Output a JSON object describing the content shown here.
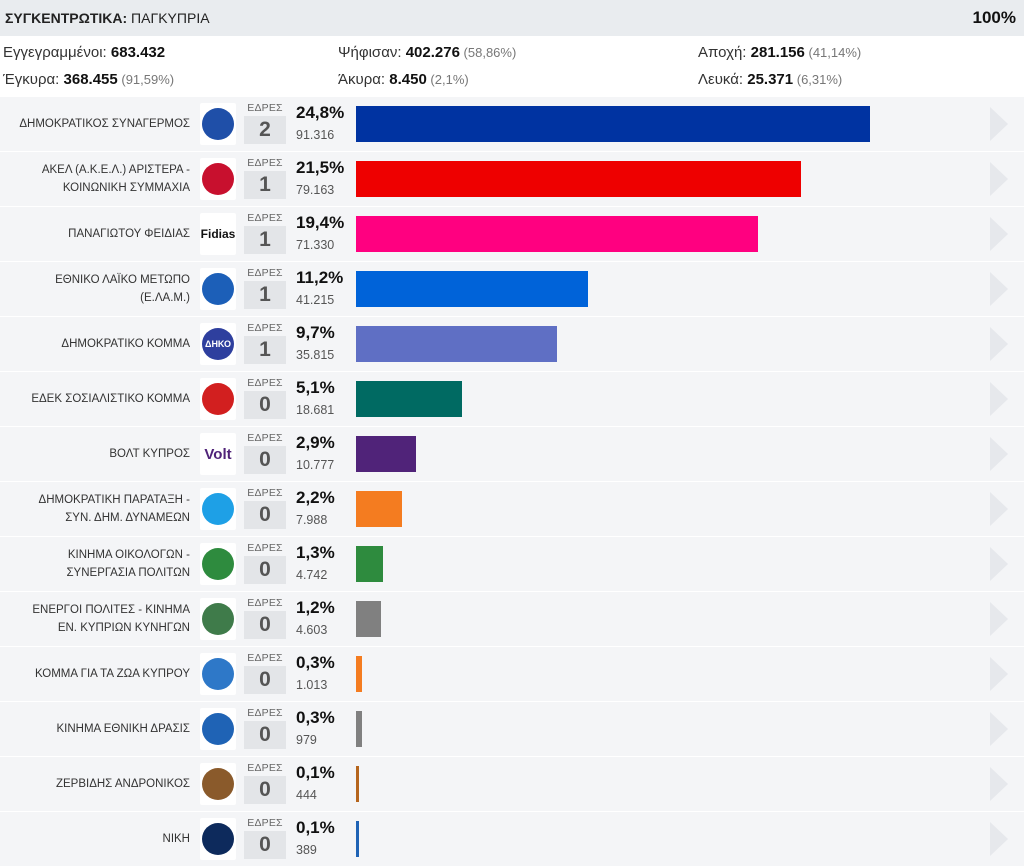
{
  "header": {
    "title_strong": "ΣΥΓΚΕΝΤΡΩΤΙΚΑ:",
    "title_rest": " ΠΑΓΚΥΠΡΙΑ",
    "percent": "100%"
  },
  "summary": {
    "registered": {
      "label": "Εγγεγραμμένοι: ",
      "value": "683.432",
      "sub": ""
    },
    "voted": {
      "label": "Ψήφισαν: ",
      "value": "402.276",
      "sub": " (58,86%)"
    },
    "abstention": {
      "label": "Αποχή: ",
      "value": "281.156",
      "sub": " (41,14%)"
    },
    "valid": {
      "label": "Έγκυρα: ",
      "value": "368.455",
      "sub": " (91,59%)"
    },
    "invalid": {
      "label": "Άκυρα: ",
      "value": "8.450",
      "sub": " (2,1%)"
    },
    "blank": {
      "label": "Λευκά: ",
      "value": "25.371",
      "sub": " (6,31%)"
    }
  },
  "seats_label": "ΕΔΡΕΣ",
  "chart_data": {
    "type": "bar",
    "categories": [
      "ΔΗΜΟΚΡΑΤΙΚΟΣ ΣΥΝΑΓΕΡΜΟΣ",
      "ΑΚΕΛ (Α.Κ.Ε.Λ.) ΑΡΙΣΤΕΡΑ - ΚΟΙΝΩΝΙΚΗ ΣΥΜΜΑΧΙΑ",
      "ΠΑΝΑΓΙΩΤΟΥ ΦΕΙΔΙΑΣ",
      "ΕΘΝΙΚΟ ΛΑΪΚΟ ΜΕΤΩΠΟ (Ε.ΛΑ.Μ.)",
      "ΔΗΜΟΚΡΑΤΙΚΟ ΚΟΜΜΑ",
      "ΕΔΕΚ ΣΟΣΙΑΛΙΣΤΙΚΟ ΚΟΜΜΑ",
      "ΒΟΛΤ ΚΥΠΡΟΣ",
      "ΔΗΜΟΚΡΑΤΙΚΗ ΠΑΡΑΤΑΞΗ - ΣΥΝ. ΔΗΜ. ΔΥΝΑΜΕΩΝ",
      "ΚΙΝΗΜΑ ΟΙΚΟΛΟΓΩΝ - ΣΥΝΕΡΓΑΣΙΑ ΠΟΛΙΤΩΝ",
      "ΕΝΕΡΓΟΙ ΠΟΛΙΤΕΣ - ΚΙΝΗΜΑ ΕΝ. ΚΥΠΡΙΩΝ ΚΥΝΗΓΩΝ",
      "ΚΟΜΜΑ ΓΙΑ ΤΑ ΖΩΑ ΚΥΠΡΟΥ",
      "ΚΙΝΗΜΑ ΕΘΝΙΚΗ ΔΡΑΣΙΣ",
      "ΖΕΡΒΙΔΗΣ ΑΝΔΡΟΝΙΚΟΣ",
      "ΝΙΚΗ"
    ],
    "values": [
      24.8,
      21.5,
      19.4,
      11.2,
      9.7,
      5.1,
      2.9,
      2.2,
      1.3,
      1.2,
      0.3,
      0.3,
      0.1,
      0.1
    ],
    "ylim": [
      0,
      28
    ],
    "rows": [
      {
        "name_lines": [
          "ΔΗΜΟΚΡΑΤΙΚΟΣ ΣΥΝΑΓΕΡΜΟΣ"
        ],
        "pct": "24,8%",
        "votes": "91.316",
        "seats": "2",
        "color": "#0033a1",
        "logo": "disy-logo-icon",
        "logo_text": "",
        "logo_color": "#1f4fa8"
      },
      {
        "name_lines": [
          "ΑΚΕΛ (Α.Κ.Ε.Λ.) ΑΡΙΣΤΕΡΑ -",
          "ΚΟΙΝΩΝΙΚΗ ΣΥΜΜΑΧΙΑ"
        ],
        "pct": "21,5%",
        "votes": "79.163",
        "seats": "1",
        "color": "#ee0000",
        "logo": "akel-logo-icon",
        "logo_text": "",
        "logo_color": "#c8102e"
      },
      {
        "name_lines": [
          "ΠΑΝΑΓΙΩΤΟΥ ΦΕΙΔΙΑΣ"
        ],
        "pct": "19,4%",
        "votes": "71.330",
        "seats": "1",
        "color": "#ff0080",
        "logo": "fidias-logo-icon",
        "logo_text": "Fidias",
        "logo_color": "#111111"
      },
      {
        "name_lines": [
          "ΕΘΝΙΚΟ ΛΑΪΚΟ ΜΕΤΩΠΟ",
          "(Ε.ΛΑ.Μ.)"
        ],
        "pct": "11,2%",
        "votes": "41.215",
        "seats": "1",
        "color": "#0063d9",
        "logo": "elam-logo-icon",
        "logo_text": "",
        "logo_color": "#1c5fb8"
      },
      {
        "name_lines": [
          "ΔΗΜΟΚΡΑΤΙΚΟ ΚΟΜΜΑ"
        ],
        "pct": "9,7%",
        "votes": "35.815",
        "seats": "1",
        "color": "#5f6fc4",
        "logo": "diko-logo-icon",
        "logo_text": "ΔΗΚΟ",
        "logo_color": "#2e3f9e"
      },
      {
        "name_lines": [
          "ΕΔΕΚ ΣΟΣΙΑΛΙΣΤΙΚΟ ΚΟΜΜΑ"
        ],
        "pct": "5,1%",
        "votes": "18.681",
        "seats": "0",
        "color": "#006a62",
        "logo": "edek-logo-icon",
        "logo_text": "",
        "logo_color": "#d21f1f"
      },
      {
        "name_lines": [
          "ΒΟΛΤ ΚΥΠΡΟΣ"
        ],
        "pct": "2,9%",
        "votes": "10.777",
        "seats": "0",
        "color": "#502379",
        "logo": "volt-logo-icon",
        "logo_text": "Volt",
        "logo_color": "#502379"
      },
      {
        "name_lines": [
          "ΔΗΜΟΚΡΑΤΙΚΗ ΠΑΡΑΤΑΞΗ -",
          "ΣΥΝ. ΔΗΜ. ΔΥΝΑΜΕΩΝ"
        ],
        "pct": "2,2%",
        "votes": "7.988",
        "seats": "0",
        "color": "#f47c20",
        "logo": "dipa-logo-icon",
        "logo_text": "",
        "logo_color": "#1ea0e6"
      },
      {
        "name_lines": [
          "ΚΙΝΗΜΑ ΟΙΚΟΛΟΓΩΝ -",
          "ΣΥΝΕΡΓΑΣΙΑ ΠΟΛΙΤΩΝ"
        ],
        "pct": "1,3%",
        "votes": "4.742",
        "seats": "0",
        "color": "#2e8b3e",
        "logo": "ecologists-logo-icon",
        "logo_text": "",
        "logo_color": "#2e8b3e"
      },
      {
        "name_lines": [
          "ΕΝΕΡΓΟΙ ΠΟΛΙΤΕΣ - ΚΙΝΗΜΑ",
          "ΕΝ. ΚΥΠΡΙΩΝ ΚΥΝΗΓΩΝ"
        ],
        "pct": "1,2%",
        "votes": "4.603",
        "seats": "0",
        "color": "#808080",
        "logo": "active-citizens-logo-icon",
        "logo_text": "",
        "logo_color": "#3f7b4a"
      },
      {
        "name_lines": [
          "ΚΟΜΜΑ ΓΙΑ ΤΑ ΖΩΑ ΚΥΠΡΟΥ"
        ],
        "pct": "0,3%",
        "votes": "1.013",
        "seats": "0",
        "color": "#f47c20",
        "logo": "animals-party-logo-icon",
        "logo_text": "",
        "logo_color": "#2e78c8"
      },
      {
        "name_lines": [
          "ΚΙΝΗΜΑ ΕΘΝΙΚΗ ΔΡΑΣΙΣ"
        ],
        "pct": "0,3%",
        "votes": "979",
        "seats": "0",
        "color": "#808080",
        "logo": "national-action-logo-icon",
        "logo_text": "",
        "logo_color": "#1f63b5"
      },
      {
        "name_lines": [
          "ΖΕΡΒΙΔΗΣ ΑΝΔΡΟΝΙΚΟΣ"
        ],
        "pct": "0,1%",
        "votes": "444",
        "seats": "0",
        "color": "#b5651d",
        "logo": "dog-photo-icon",
        "logo_text": "",
        "logo_color": "#8a5a2b"
      },
      {
        "name_lines": [
          "ΝΙΚΗ"
        ],
        "pct": "0,1%",
        "votes": "389",
        "seats": "0",
        "color": "#1f63b5",
        "logo": "niki-logo-icon",
        "logo_text": "",
        "logo_color": "#0d2a5c"
      }
    ]
  }
}
